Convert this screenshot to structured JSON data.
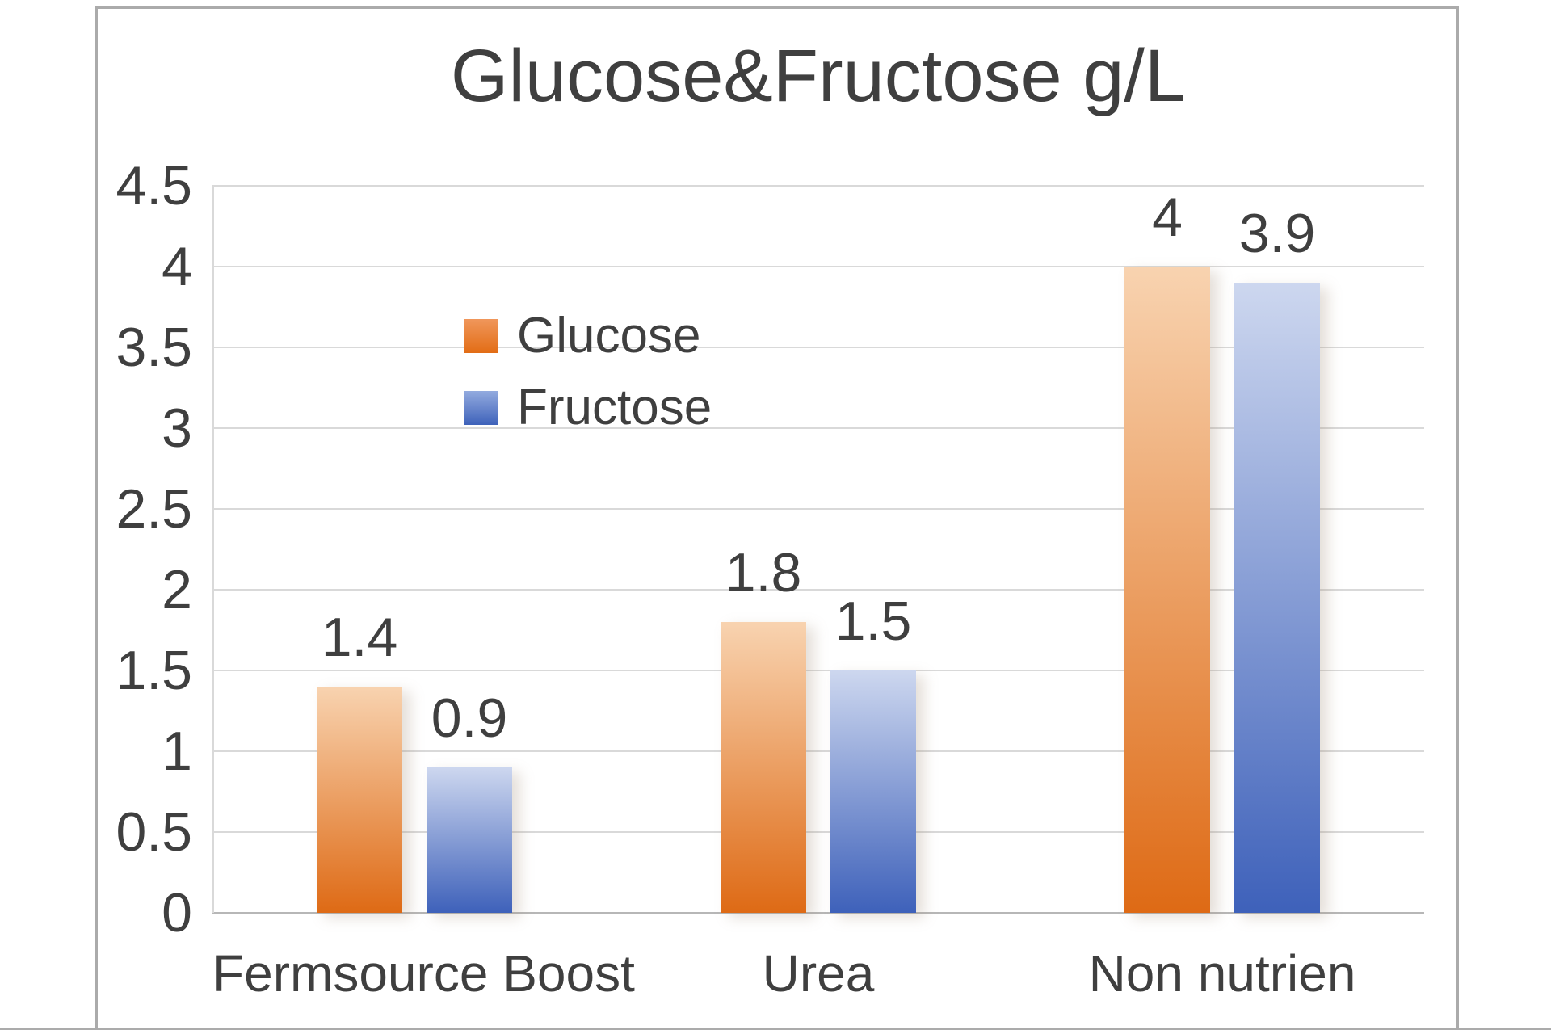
{
  "chart_data": {
    "type": "bar",
    "title": "Glucose&Fructose g/L",
    "categories": [
      "Fermsource Boost",
      "Urea",
      "Non nutrien"
    ],
    "series": [
      {
        "name": "Glucose",
        "values": [
          1.4,
          1.8,
          4
        ],
        "data_labels": [
          "1.4",
          "1.8",
          "4"
        ],
        "fill_top": "#F8D3B0",
        "fill_bottom": "#DE6A15",
        "marker_top": "#F0975B",
        "marker_bottom": "#E26D15"
      },
      {
        "name": "Fructose",
        "values": [
          0.9,
          1.5,
          3.9
        ],
        "data_labels": [
          "0.9",
          "1.5",
          "3.9"
        ],
        "fill_top": "#CDD7EF",
        "fill_bottom": "#3E61BA",
        "marker_top": "#93ABDF",
        "marker_bottom": "#3E62BA"
      }
    ],
    "y_ticks": [
      "4.5",
      "4",
      "3.5",
      "3",
      "2.5",
      "2",
      "1.5",
      "1",
      "0.5",
      "0"
    ],
    "ylim": [
      0,
      4.5
    ],
    "xlabel": "",
    "ylabel": "",
    "grid": true,
    "legend_position": "inside-upper-left",
    "colors": {
      "grid": "#D9D9D9",
      "axis": "#B7B7B7",
      "text": "#3F3F3F",
      "frame_border": "#ABABAB"
    }
  }
}
